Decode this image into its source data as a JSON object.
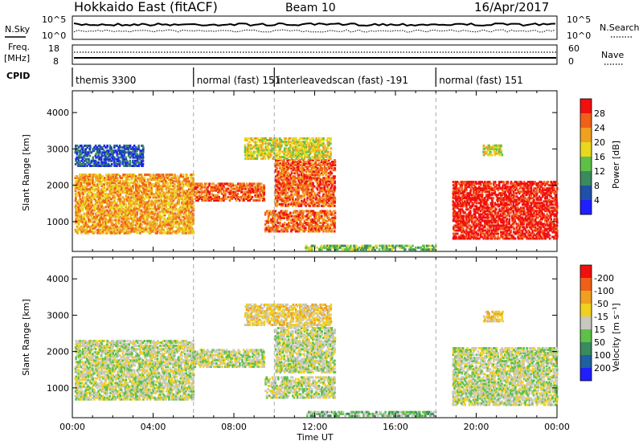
{
  "header": {
    "station": "Hokkaido East (fitACF)",
    "beam": "Beam 10",
    "date": "16/Apr/2017"
  },
  "top_panels": {
    "nsky_label": "N.Sky",
    "nsearch_label": "N.Search",
    "nsky_ticks": [
      "10^5",
      "10^0"
    ],
    "nsearch_ticks": [
      "10^5",
      "10^0"
    ],
    "freq_label_1": "Freq.",
    "freq_label_2": "[MHz]",
    "freq_ticks": [
      "18",
      "8"
    ],
    "nave_label": "Nave",
    "nave_ticks": [
      "60",
      "0"
    ],
    "cpid_label": "CPID",
    "cpid_segments": [
      {
        "name": "themis 3300",
        "start_hour": 0
      },
      {
        "name": "normal (fast) 151",
        "start_hour": 6
      },
      {
        "name": "interleavedscan (fast) -191",
        "start_hour": 10
      },
      {
        "name": "normal (fast) 151",
        "start_hour": 18
      }
    ]
  },
  "chart_data": [
    {
      "type": "heatmap",
      "title": "",
      "xlabel": "",
      "ylabel": "Slant Range [km]",
      "xlim": [
        0,
        24
      ],
      "ylim": [
        180,
        4600
      ],
      "yticks": [
        "1000",
        "2000",
        "3000",
        "4000"
      ],
      "colorbar_label": "Power [dB]",
      "colorbar_ticks": [
        "4",
        "8",
        "12",
        "16",
        "20",
        "24",
        "28"
      ],
      "colorbar_colors": [
        "#1f1fff",
        "#2050a8",
        "#3a8a5e",
        "#5ec048",
        "#e8d820",
        "#f0a020",
        "#f06018",
        "#f01010"
      ],
      "dashed_time_lines": [
        6,
        10,
        18
      ],
      "echo_regions": [
        {
          "t0": 0.1,
          "t1": 6.0,
          "r0": 650,
          "r1": 2300,
          "level": 5
        },
        {
          "t0": 0.1,
          "t1": 3.5,
          "r0": 2500,
          "r1": 3100,
          "level": 1
        },
        {
          "t0": 6.0,
          "t1": 9.5,
          "r0": 1550,
          "r1": 2050,
          "level": 6
        },
        {
          "t0": 9.5,
          "t1": 13.0,
          "r0": 700,
          "r1": 1300,
          "level": 6
        },
        {
          "t0": 10.0,
          "t1": 13.0,
          "r0": 1400,
          "r1": 2700,
          "level": 6
        },
        {
          "t0": 8.5,
          "t1": 12.8,
          "r0": 2700,
          "r1": 3300,
          "level": 4
        },
        {
          "t0": 11.5,
          "t1": 18.0,
          "r0": 200,
          "r1": 350,
          "level": 3
        },
        {
          "t0": 18.8,
          "t1": 24.0,
          "r0": 500,
          "r1": 2100,
          "level": 7
        },
        {
          "t0": 20.3,
          "t1": 21.3,
          "r0": 2800,
          "r1": 3100,
          "level": 4
        }
      ]
    },
    {
      "type": "heatmap",
      "title": "",
      "xlabel": "Time UT",
      "ylabel": "Slant Range [km]",
      "xlim": [
        0,
        24
      ],
      "ylim": [
        180,
        4600
      ],
      "yticks": [
        "1000",
        "2000",
        "3000",
        "4000"
      ],
      "xticks": [
        "00:00",
        "04:00",
        "08:00",
        "12:00",
        "16:00",
        "20:00",
        "00:00"
      ],
      "colorbar_label": "Velocity [m s⁻¹]",
      "colorbar_ticks": [
        "200",
        "100",
        "50",
        "15",
        "-15",
        "-50",
        "-100",
        "-200"
      ],
      "colorbar_colors": [
        "#1f1fff",
        "#2060a0",
        "#3a8a5e",
        "#5ec048",
        "#c8c8c0",
        "#f0d020",
        "#f0a020",
        "#f06018",
        "#f01010"
      ],
      "dashed_time_lines": [
        6,
        10,
        18
      ],
      "echo_regions": [
        {
          "t0": 0.1,
          "t1": 6.0,
          "r0": 650,
          "r1": 2300,
          "level": 4
        },
        {
          "t0": 6.0,
          "t1": 9.5,
          "r0": 1550,
          "r1": 2050,
          "level": 4
        },
        {
          "t0": 9.5,
          "t1": 13.0,
          "r0": 700,
          "r1": 1300,
          "level": 4
        },
        {
          "t0": 10.0,
          "t1": 13.0,
          "r0": 1400,
          "r1": 2700,
          "level": 4
        },
        {
          "t0": 8.5,
          "t1": 12.8,
          "r0": 2700,
          "r1": 3300,
          "level": 5
        },
        {
          "t0": 11.5,
          "t1": 18.0,
          "r0": 200,
          "r1": 350,
          "level": 3
        },
        {
          "t0": 18.8,
          "t1": 24.0,
          "r0": 500,
          "r1": 2100,
          "level": 4
        },
        {
          "t0": 20.3,
          "t1": 21.3,
          "r0": 2800,
          "r1": 3100,
          "level": 5
        }
      ]
    }
  ]
}
